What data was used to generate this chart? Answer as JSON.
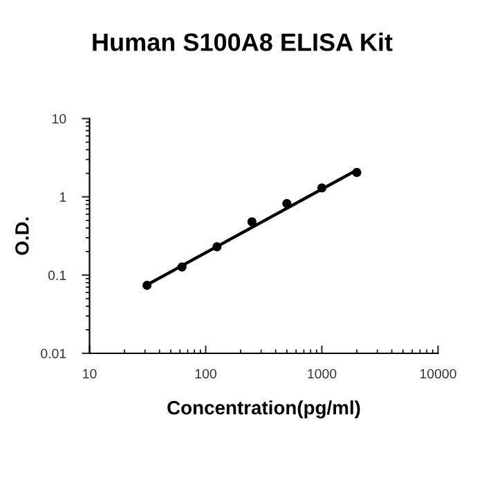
{
  "chart_data": {
    "type": "scatter",
    "title": "Human S100A8 ELISA Kit",
    "xlabel": "Concentration(pg/ml)",
    "ylabel": "O.D.",
    "log": "xy",
    "x": [
      31.25,
      62.5,
      125,
      250,
      500,
      1000,
      2000
    ],
    "series": [
      {
        "color": "#000000",
        "marker": "circle",
        "values": [
          0.074,
          0.127,
          0.23,
          0.48,
          0.82,
          1.3,
          2.05
        ]
      },
      {
        "type": "line",
        "color": "#000000",
        "x": [
          31.25,
          2000
        ],
        "values": [
          0.075,
          2.2
        ],
        "line_style": "solid"
      }
    ],
    "xlim": [
      10,
      10000
    ],
    "ylim": [
      0.01,
      10
    ],
    "xticks": [
      10,
      100,
      1000,
      10000
    ],
    "yticks": [
      0.01,
      0.1,
      1,
      10
    ],
    "grid": false,
    "legend": false
  }
}
